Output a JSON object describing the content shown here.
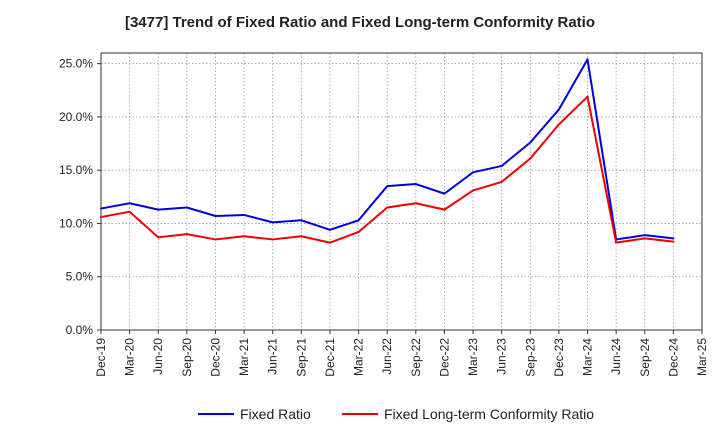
{
  "chart_data": {
    "type": "line",
    "title": "[3477]  Trend of Fixed Ratio and Fixed Long-term Conformity Ratio",
    "xlabel": "",
    "ylabel": "",
    "x": [
      "Dec-19",
      "Mar-20",
      "Jun-20",
      "Sep-20",
      "Dec-20",
      "Mar-21",
      "Jun-21",
      "Sep-21",
      "Dec-21",
      "Mar-22",
      "Jun-22",
      "Sep-22",
      "Dec-22",
      "Mar-23",
      "Jun-23",
      "Sep-23",
      "Dec-23",
      "Mar-24",
      "Jun-24",
      "Sep-24",
      "Dec-24",
      "Mar-25"
    ],
    "ylim": [
      0,
      26
    ],
    "yticks": [
      0,
      5,
      10,
      15,
      20,
      25
    ],
    "ytick_labels": [
      "0.0%",
      "5.0%",
      "10.0%",
      "15.0%",
      "20.0%",
      "25.0%"
    ],
    "grid": true,
    "legend_position": "bottom",
    "series": [
      {
        "name": "Fixed Ratio",
        "color": "#0000dd",
        "values": [
          11.4,
          11.9,
          11.3,
          11.5,
          10.7,
          10.8,
          10.1,
          10.3,
          9.4,
          10.3,
          13.5,
          13.7,
          12.8,
          14.8,
          15.4,
          17.6,
          20.7,
          25.4,
          8.5,
          8.9,
          8.6,
          null
        ]
      },
      {
        "name": "Fixed Long-term Conformity Ratio",
        "color": "#ee0000",
        "values": [
          10.6,
          11.1,
          8.7,
          9.0,
          8.5,
          8.8,
          8.5,
          8.8,
          8.2,
          9.2,
          11.5,
          11.9,
          11.3,
          13.1,
          13.9,
          16.1,
          19.3,
          21.9,
          8.2,
          8.6,
          8.3,
          null
        ]
      }
    ]
  }
}
